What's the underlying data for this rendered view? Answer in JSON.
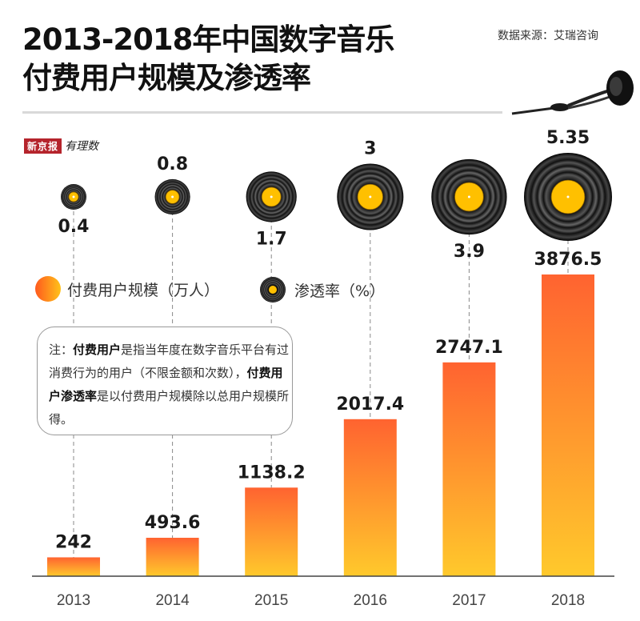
{
  "header": {
    "title_line1": "2013-2018年中国数字音乐",
    "title_line2": "付费用户规模及渗透率",
    "source": "数据来源：艾瑞咨询"
  },
  "brand": {
    "box_text": "新京报",
    "script_text": "有理数"
  },
  "legend": {
    "bar_label": "付费用户规模（万人）",
    "record_label": "渗透率（%）"
  },
  "note": {
    "prefix": "注：",
    "term1": "付费用户",
    "text1": "是指当年度在数字音乐平台有过消费行为的用户（不限金额和次数），",
    "term2": "付费用户渗透率",
    "text2": "是以付费用户规模除以总用户规模所得。"
  },
  "colors": {
    "bar_top": "#ff6330",
    "bar_bottom": "#ffc92c",
    "record": "#0a0a0a",
    "record_label": "#ffc000",
    "brand_red": "#b5242c"
  },
  "chart_data": {
    "type": "bar",
    "title": "2013-2018年中国数字音乐付费用户规模及渗透率",
    "categories": [
      "2013",
      "2014",
      "2015",
      "2016",
      "2017",
      "2018"
    ],
    "series": [
      {
        "name": "付费用户规模（万人）",
        "type": "bar",
        "values": [
          242,
          493.6,
          1138.2,
          2017.4,
          2747.1,
          3876.5
        ],
        "labels": [
          "242",
          "493.6",
          "1138.2",
          "2017.4",
          "2747.1",
          "3876.5"
        ]
      },
      {
        "name": "渗透率（%）",
        "type": "bubble-record",
        "values": [
          0.4,
          0.8,
          1.7,
          3,
          3.9,
          5.35
        ],
        "labels": [
          "0.4",
          "0.8",
          "1.7",
          "3",
          "3.9",
          "5.35"
        ]
      }
    ],
    "xlabel": "",
    "ylabel": "",
    "ylim": [
      0,
      3876.5
    ],
    "grid": false,
    "legend": "middle-left"
  }
}
